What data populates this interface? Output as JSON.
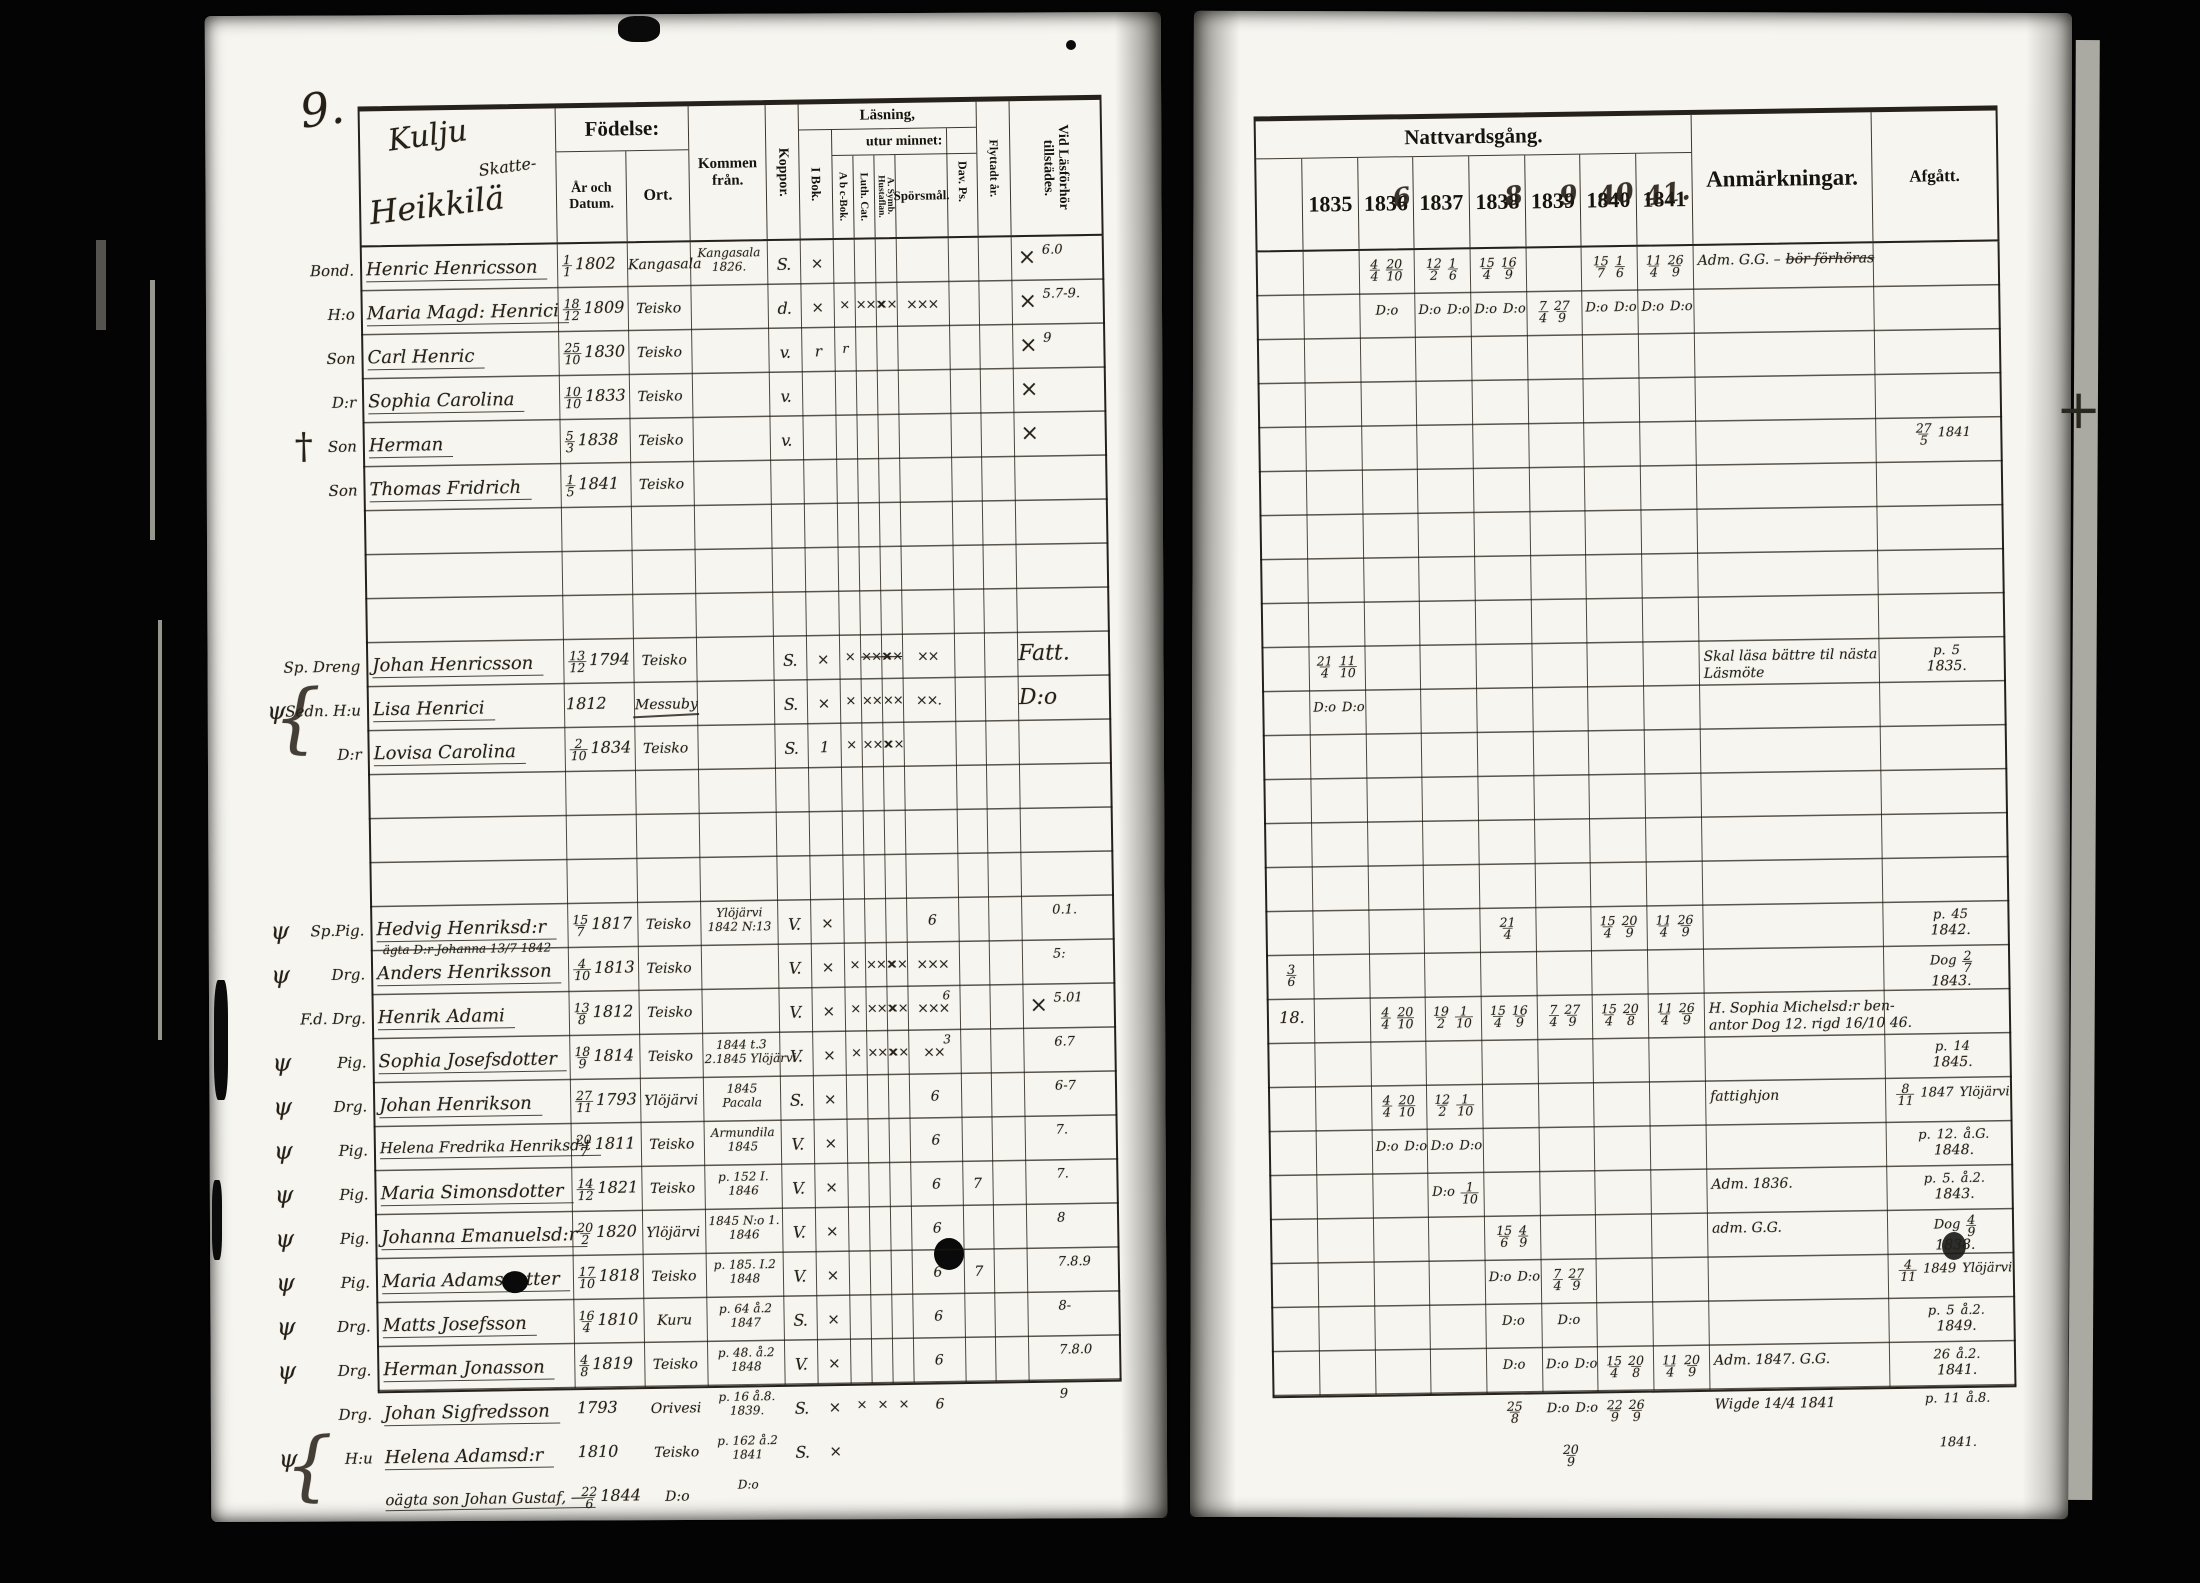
{
  "scan": {
    "page_number": "9.",
    "marks": {
      "dagger": "†",
      "psi": "ψ",
      "brace": "{",
      "registrar_cross": "+"
    }
  },
  "left": {
    "farm": {
      "name1": "Kulju",
      "tenure": "Skatte-",
      "name2": "Heikkilä"
    },
    "headers": {
      "fodelse": "Födelse:",
      "ar_datum": "År och Datum.",
      "ort": "Ort.",
      "kommen": "Kommen från.",
      "koppor": "Koppor.",
      "lasning": "Läsning,",
      "utur_minnet": "utur minnet:",
      "i_bok": "I Bok.",
      "abc_bok": "A b c-Bok.",
      "luth_cat": "Luth. Cat.",
      "symb_hustaflan": "A. Symb. Hustaflan.",
      "sporsmal": "Spörsmål.",
      "dav_ps": "Dav. Ps.",
      "flyttadt_ar": "Flyttadt år.",
      "vid_lasforhor": "Vid Läsförhör tillstädes."
    },
    "rows": [
      {
        "i": 0,
        "m": "Bond.",
        "name": "Henric Henricsson",
        "d": "1/1",
        "y": "1802",
        "ort": "Kangasala",
        "kf": [
          "Kangasala",
          "1826."
        ],
        "kop": "S.",
        "ib": "×",
        "vid": "×",
        "vn": "6.0"
      },
      {
        "i": 1,
        "m": "H:o",
        "name": "Maria Magd: Henrici",
        "d": "18/12",
        "y": "1809",
        "ort": "Teisko",
        "kop": "d.",
        "ib": "×",
        "abc": "×",
        "lut": "×××",
        "sym": "××",
        "spo": "×××",
        "vid": "×",
        "vn": "5.7-9."
      },
      {
        "i": 2,
        "m": "Son",
        "name": "Carl Henric",
        "d": "25/10",
        "y": "1830",
        "ort": "Teisko",
        "kop": "v.",
        "ib": "r",
        "abc": "r",
        "vid": "×",
        "vn": "9"
      },
      {
        "i": 3,
        "m": "D:r",
        "name": "Sophia Carolina",
        "d": "10/10",
        "y": "1833",
        "ort": "Teisko",
        "kop": "v.",
        "vid": "×"
      },
      {
        "i": 4,
        "m": "Son",
        "cross": 1,
        "name": "Herman",
        "d": "5/3",
        "y": "1838",
        "ort": "Teisko",
        "kop": "v.",
        "vid": "×"
      },
      {
        "i": 5,
        "m": "Son",
        "name": "Thomas Fridrich",
        "d": "1/5",
        "y": "1841",
        "ort": "Teisko"
      },
      {
        "i": 9,
        "m": "Sp. Dreng",
        "name": "Johan Henricsson",
        "d": "13/12",
        "y": "1794",
        "ort": "Teisko",
        "kop": "S.",
        "ib": "×",
        "abc": "×",
        "lut": "×××",
        "lut_s": 1,
        "sym": "××",
        "sym_s": 1,
        "spo": "××",
        "vid": "Fatt."
      },
      {
        "i": 10,
        "m": "Sedn. H:u",
        "psi": 1,
        "brace": 1,
        "name": "Lisa Henrici",
        "y": "1812",
        "ort": "Messuby",
        "ort_struck": 1,
        "kop": "S.",
        "ib": "×",
        "abc": "×",
        "lut": "××",
        "sym": "××",
        "spo": "××.",
        "vid": "D:o"
      },
      {
        "i": 11,
        "m": "D:r",
        "name": "Lovisa Carolina",
        "d": "2/10",
        "y": "1834",
        "ort": "Teisko",
        "kop": "S.",
        "ib": "1",
        "abc": "×",
        "lut": "×××",
        "sym": "××"
      },
      {
        "i": 15,
        "psi": 1,
        "m": "Sp.Pig.",
        "name": "Hedvig Henriksd:r",
        "under": "ägta D:r Johanna 13/7 1842",
        "d": "15/7",
        "y": "1817",
        "ort": "Teisko",
        "kf": [
          "Ylöjärvi",
          "1842 N:13"
        ],
        "kop": "V.",
        "ib": "×",
        "spo": "6",
        "vn": "0.1."
      },
      {
        "i": 16,
        "psi": 1,
        "m": "Drg.",
        "name": "Anders Henriksson",
        "d": "4/10",
        "y": "1813",
        "ort": "Teisko",
        "kop": "V.",
        "ib": "×",
        "abc": "×",
        "lut": "×××",
        "sym": "××",
        "spo": "×××",
        "vn": "5:"
      },
      {
        "i": 17,
        "m": "F.d. Drg.",
        "name": "Henrik Adami",
        "d": "13/8",
        "y": "1812",
        "ort": "Teisko",
        "kop": "V.",
        "ib": "×",
        "abc": "×",
        "lut": "×××",
        "sym": "××",
        "spo": "×××",
        "spo2": "6",
        "vid": "×",
        "vn": "5.01"
      },
      {
        "i": 18,
        "psi": 1,
        "m": "Pig.",
        "name": "Sophia Josefsdotter",
        "d": "18/9",
        "y": "1814",
        "ort": "Teisko",
        "kf": [
          "1844 t.3",
          "2.1845 Ylöjärvi"
        ],
        "kop": "V.",
        "ib": "×",
        "abc": "×",
        "lut": "×××",
        "sym": "××",
        "spo": "××",
        "spo2": "3",
        "vn": "6.7"
      },
      {
        "i": 19,
        "psi": 1,
        "m": "Drg.",
        "name": "Johan Henrikson",
        "d": "27/11",
        "y": "1793",
        "ort": "Ylöjärvi",
        "kf": [
          "1845",
          "Pacala"
        ],
        "kop": "S.",
        "ib": "×",
        "spo": "6",
        "vn": "6-7"
      },
      {
        "i": 20,
        "psi": 1,
        "m": "Pig.",
        "name": "Helena Fredrika Henriksd:t",
        "d": "20/7",
        "y": "1811",
        "ort": "Teisko",
        "kf": [
          "Armundila",
          "1845"
        ],
        "kop": "V.",
        "ib": "×",
        "spo": "6",
        "vn": "7."
      },
      {
        "i": 21,
        "psi": 1,
        "m": "Pig.",
        "name": "Maria Simonsdotter",
        "d": "14/12",
        "y": "1821",
        "ort": "Teisko",
        "kf": [
          "p. 152 I.",
          "1846"
        ],
        "kop": "V.",
        "ib": "×",
        "spo": "6",
        "dav": "7",
        "vn": "7."
      },
      {
        "i": 22,
        "psi": 1,
        "m": "Pig.",
        "name": "Johanna Emanuelsd:r",
        "d": "20/2",
        "y": "1820",
        "ort": "Ylöjärvi",
        "kf": [
          "1845 N:o 1.",
          "1846"
        ],
        "kop": "V.",
        "ib": "×",
        "spo": "6",
        "vn": "8"
      },
      {
        "i": 23,
        "psi": 1,
        "m": "Pig.",
        "name": "Maria Adamsdotter",
        "blot": 1,
        "d": "17/10",
        "y": "1818",
        "ort": "Teisko",
        "kf": [
          "p. 185. I.2",
          "1848"
        ],
        "kop": "V.",
        "ib": "×",
        "spo": "6",
        "dav": "7",
        "vn": "7.8.9"
      },
      {
        "i": 24,
        "psi": 1,
        "m": "Drg.",
        "name": "Matts Josefsson",
        "d": "16/4",
        "y": "1810",
        "ort": "Kuru",
        "kf": [
          "p. 64 å.2",
          "1847"
        ],
        "kop": "S.",
        "ib": "×",
        "spo": "6",
        "vn": "8-"
      },
      {
        "i": 25,
        "psi": 1,
        "m": "Drg.",
        "name": "Herman Jonasson",
        "d": "4/8",
        "y": "1819",
        "ort": "Teisko",
        "kf": [
          "p. 48. å.2",
          "1848"
        ],
        "kop": "V.",
        "ib": "×",
        "spo": "6",
        "vn": "7.8.0"
      },
      {
        "i": 26,
        "m": "Drg.",
        "name": "Johan Sigfredsson",
        "y": "1793",
        "ort": "Orivesi",
        "kf": [
          "p. 16 å.8.",
          "1839."
        ],
        "kop": "S.",
        "ib": "×",
        "abc": "×",
        "lut": "×",
        "sym": "×",
        "spo": "6",
        "vn": "9"
      },
      {
        "i": 27,
        "m": "H:u",
        "psi": 1,
        "brace": 1,
        "name": "Helena Adamsd:r",
        "y": "1810",
        "ort": "Teisko",
        "kf": [
          "p. 162 å.2",
          "1841"
        ],
        "kop": "S.",
        "ib": "×"
      },
      {
        "i": 28,
        "m": "",
        "name": "oägta son Johan Gustaf, —",
        "d": "22/6",
        "y": "1844",
        "ort": "D:o",
        "kf": [
          "D:o"
        ]
      }
    ]
  },
  "right": {
    "title": "Nattvardsgång.",
    "years": [
      "1835",
      "1836",
      "1837",
      "1838",
      "1839",
      "1840",
      "1841"
    ],
    "years_hand": [
      "",
      "6",
      "",
      "8",
      "9",
      "40",
      "41."
    ],
    "anm_header": "Anmärkningar.",
    "afgatt_header": "Afgått.",
    "rows": [
      {
        "i": 0,
        "c36": "4/4 20/10",
        "c37": "12/2 1/6",
        "c38": "15/4 16/9",
        "c40": "15/7 1/6",
        "c41": "11/4 26/9",
        "anm1": "Adm. G.G. –",
        "anm1_struck": "bör förhöras"
      },
      {
        "i": 1,
        "c36": "D:o",
        "c37": "D:o D:o",
        "c38": "D:o D:o",
        "c39": "7/4 27/9",
        "c40": "D:o D:o",
        "c41": "D:o D:o"
      },
      {
        "i": 4,
        "afg1": "27/5 1841"
      },
      {
        "i": 9,
        "c35": "21/4 11/10",
        "anm1": "Skal läsa bättre til nästa",
        "anm2": "Läsmöte",
        "afg1": "p. 5",
        "afg2": "1835."
      },
      {
        "i": 10,
        "c35": "D:o D:o"
      },
      {
        "i": 15,
        "c38": "21/4",
        "c40": "15/4 20/9",
        "c41": "11/4 26/9",
        "afg1": "p. 45",
        "afg2": "1842."
      },
      {
        "i": 16,
        "m": "3/6",
        "afg1": "Dog 2/7",
        "afg2": "1843."
      },
      {
        "i": 17,
        "m": "18.",
        "c36": "4/4 20/10",
        "c37": "19/2 1/10",
        "c38": "15/4 16/9",
        "c39": "7/4 27/9",
        "c40": "15/4 20/8",
        "c41": "11/4 26/9",
        "anm1": "H. Sophia Michelsd:r ben-",
        "anm2": "antor Dog 12. rigd 16/10 46."
      },
      {
        "i": 18,
        "afg1": "p. 14",
        "afg2": "1845."
      },
      {
        "i": 19,
        "c36": "4/4 20/10",
        "c37": "12/2 1/10",
        "anm1": "fattighjon",
        "afg1": "8/11 1847 Ylöjärvi"
      },
      {
        "i": 20,
        "c36": "D:o D:o",
        "c37": "D:o D:o",
        "afg1": "p. 12. å.G.",
        "afg2": "1848."
      },
      {
        "i": 21,
        "c37": "D:o 1/10",
        "anm1": "Adm. 1836.",
        "afg1": "p. 5. å.2.",
        "afg2": "1843."
      },
      {
        "i": 22,
        "c38": "15/6 4/9",
        "anm1": "adm. G.G.",
        "afg1": "Dog 4/9",
        "afg2": "1838."
      },
      {
        "i": 23,
        "c38": "D:o D:o",
        "c39": "7/4 27/9",
        "afg1": "4/11 1849 Ylöjärvi"
      },
      {
        "i": 24,
        "c38": "D:o",
        "c39": "D:o",
        "afg1": "p. 5 å.2.",
        "afg2": "1849."
      },
      {
        "i": 25,
        "c38": "D:o",
        "c39": "D:o D:o",
        "c40": "15/4 20/8",
        "c41": "11/4 20/9",
        "anm1": "Adm. 1847. G.G.",
        "afg1": "26 å.2.",
        "afg2": "1841."
      },
      {
        "i": 26,
        "c38": "25/8",
        "c39": "D:o D:o",
        "c40": "22/9 26/9",
        "anm1": "Wigde 14/4 1841",
        "afg1": "p. 11 å.8."
      },
      {
        "i": 27,
        "c39": "20/9",
        "afg1": "1841."
      }
    ]
  }
}
